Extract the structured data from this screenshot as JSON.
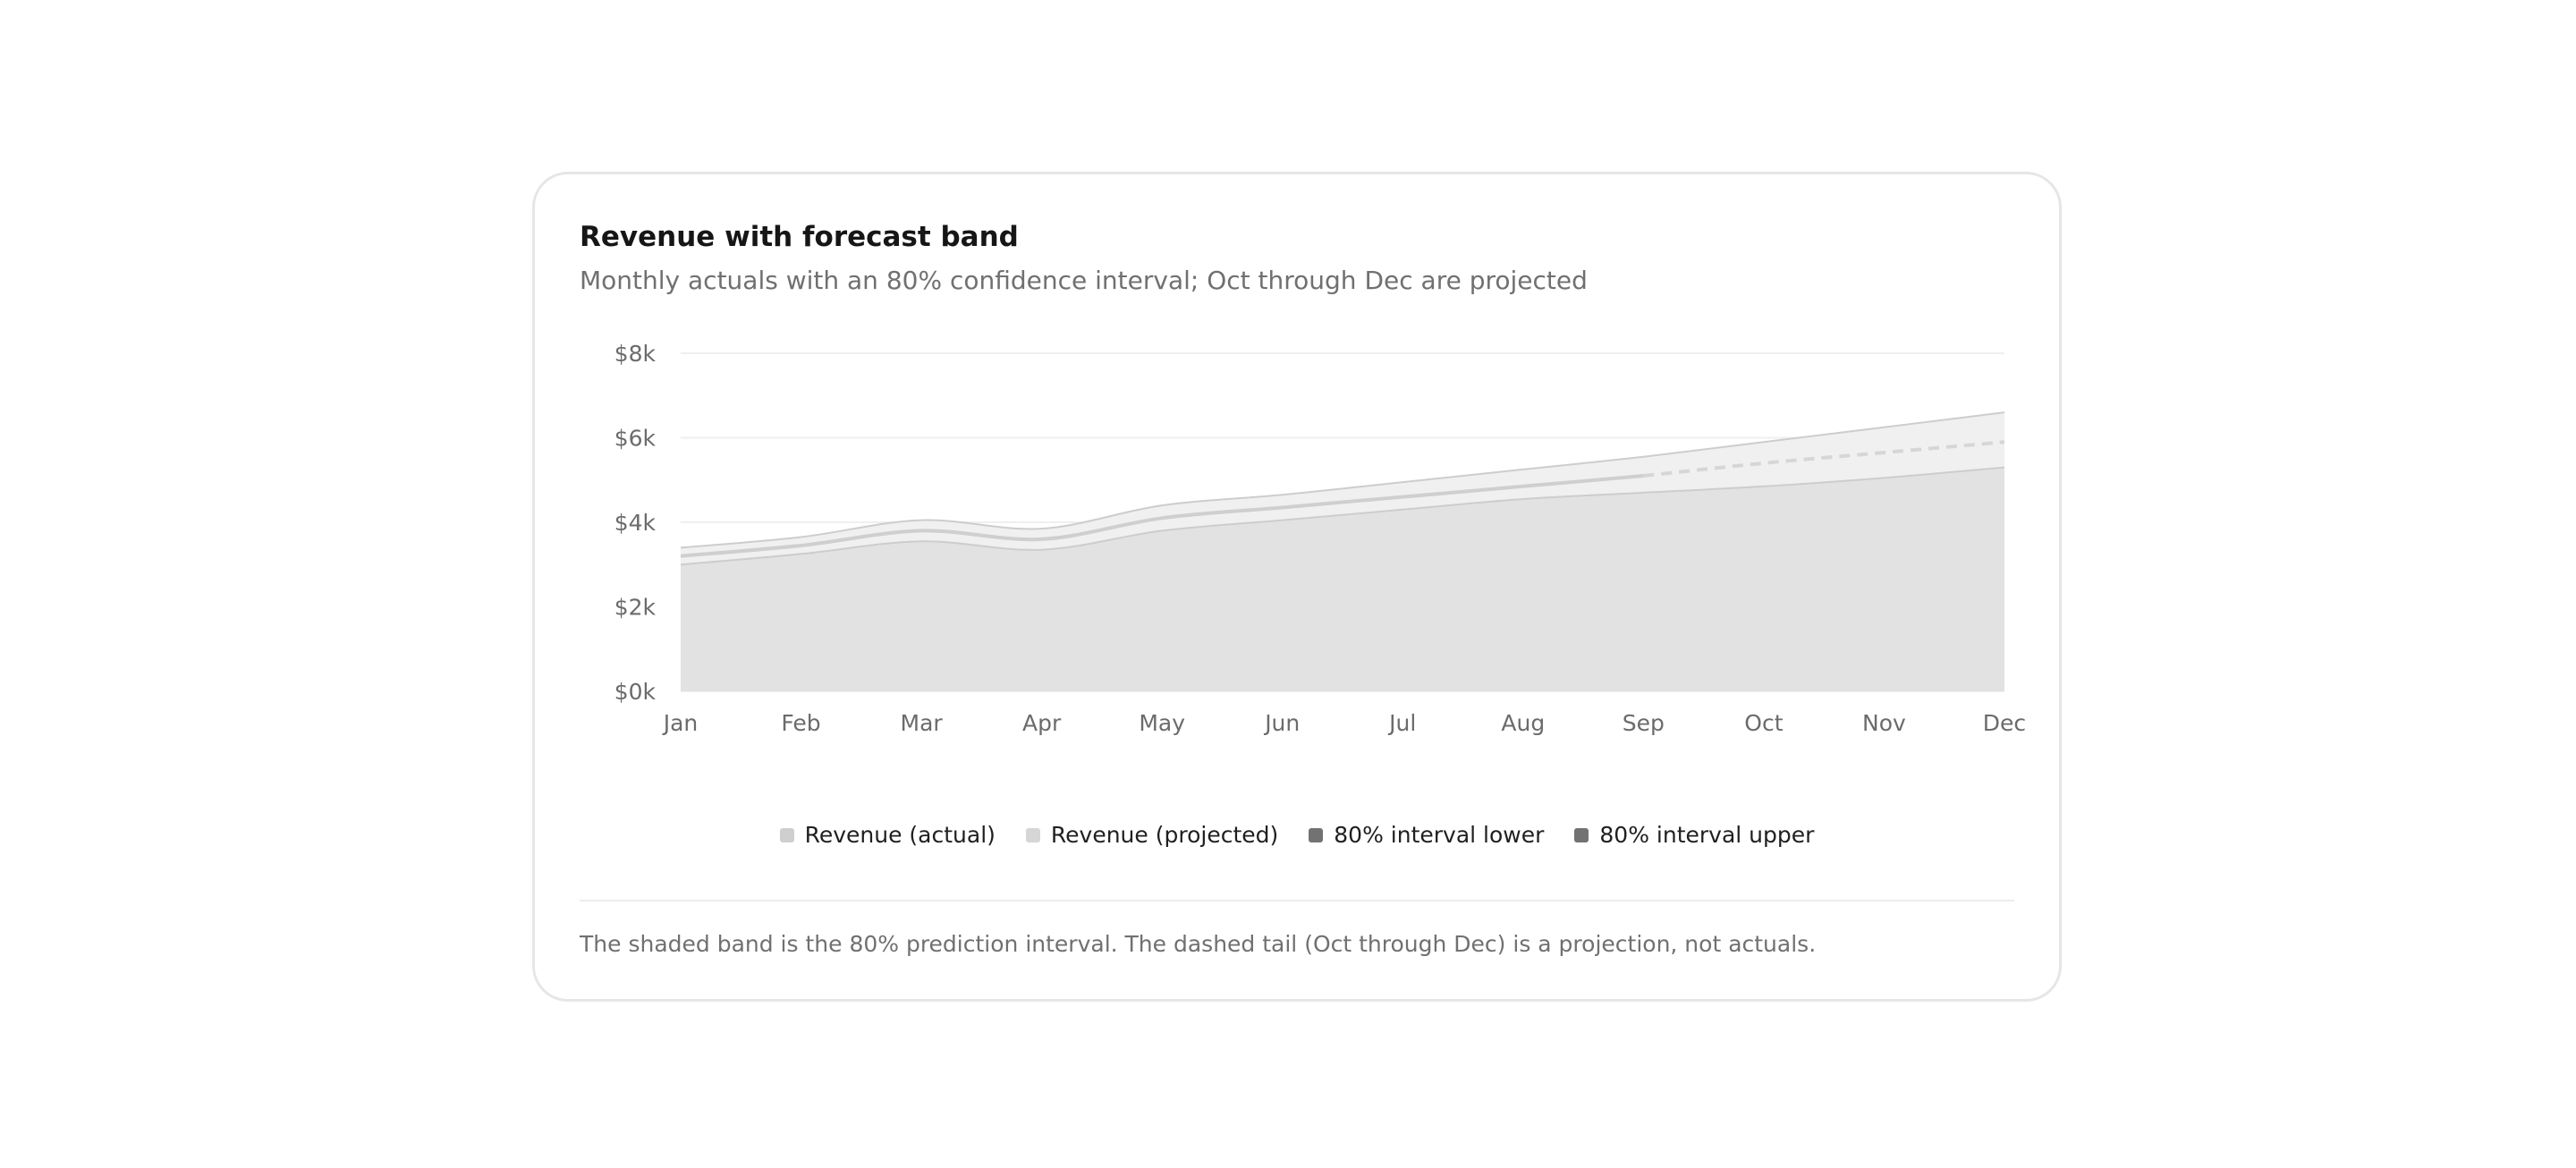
{
  "card": {
    "title": "Revenue with forecast band",
    "subtitle": "Monthly actuals with an 80% confidence interval; Oct through Dec are projected",
    "footnote": "The shaded band is the 80% prediction interval. The dashed tail (Oct through Dec) is a projection, not actuals."
  },
  "chart_data": {
    "type": "area",
    "categories": [
      "Jan",
      "Feb",
      "Mar",
      "Apr",
      "May",
      "Jun",
      "Jul",
      "Aug",
      "Sep",
      "Oct",
      "Nov",
      "Dec"
    ],
    "y_ticks": [
      "$0k",
      "$2k",
      "$4k",
      "$6k",
      "$8k"
    ],
    "ylim": [
      0,
      8000
    ],
    "grid": true,
    "legend_position": "bottom-center",
    "projected_from_index": 8,
    "series": [
      {
        "name": "Revenue (actual)",
        "values": [
          3200,
          3450,
          3800,
          3600,
          4100,
          4350,
          4600,
          4850,
          5100,
          null,
          null,
          null
        ],
        "color": "#cfcfcf"
      },
      {
        "name": "Revenue (projected)",
        "values": [
          null,
          null,
          null,
          null,
          null,
          null,
          null,
          null,
          5100,
          5400,
          5650,
          5900
        ],
        "color": "#d6d6d6",
        "dashed": true
      },
      {
        "name": "80% interval lower",
        "values": [
          3000,
          3250,
          3550,
          3350,
          3800,
          4050,
          4300,
          4550,
          4700,
          4850,
          5050,
          5300
        ],
        "color": "#727272"
      },
      {
        "name": "80% interval upper",
        "values": [
          3400,
          3650,
          4050,
          3850,
          4400,
          4650,
          4950,
          5250,
          5550,
          5900,
          6250,
          6600
        ],
        "color": "#727272"
      }
    ]
  }
}
